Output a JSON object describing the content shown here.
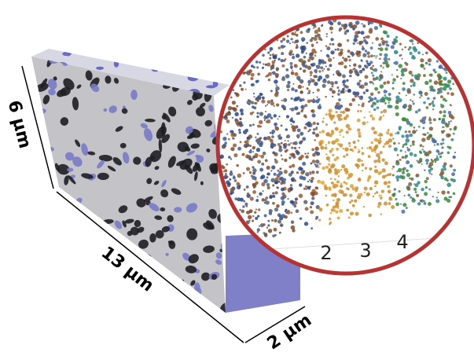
{
  "dimensions": {
    "height": "6 µm",
    "length": "13 µm",
    "depth": "2 µm"
  },
  "inset": {
    "axis_labels": [
      "2",
      "3",
      "4"
    ]
  }
}
